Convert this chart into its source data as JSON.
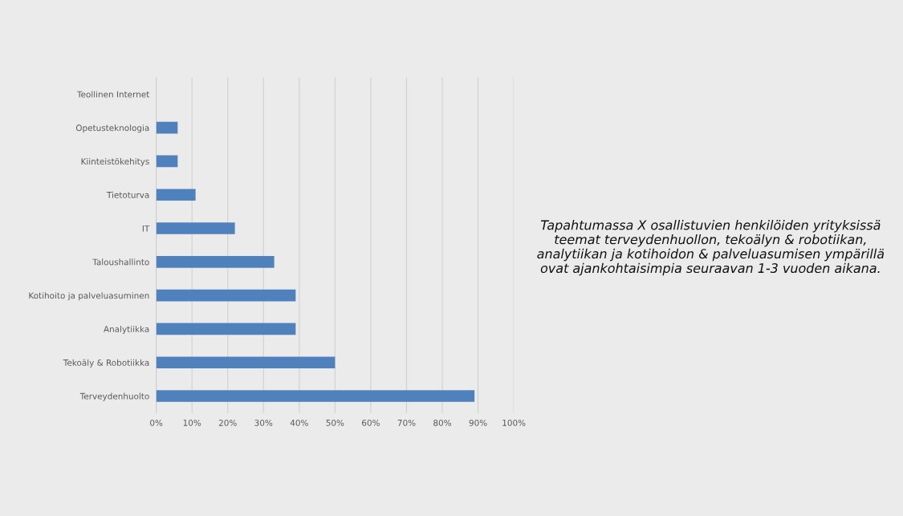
{
  "chart_data": {
    "type": "bar",
    "orientation": "horizontal",
    "categories": [
      "Teollinen Internet",
      "Opetusteknologia",
      "Kiinteistökehitys",
      "Tietoturva",
      "IT",
      "Taloushallinto",
      "Kotihoito ja palveluasuminen",
      "Analytiikka",
      "Tekoäly & Robotiikka",
      "Terveydenhuolto"
    ],
    "values": [
      0,
      6,
      6,
      11,
      22,
      33,
      39,
      39,
      50,
      89
    ],
    "color": "#4f81bd",
    "xlim": [
      0,
      100
    ],
    "xticks": [
      {
        "value": 0,
        "label": "0%"
      },
      {
        "value": 10,
        "label": "10%"
      },
      {
        "value": 20,
        "label": "20%"
      },
      {
        "value": 30,
        "label": "30%"
      },
      {
        "value": 40,
        "label": "40%"
      },
      {
        "value": 50,
        "label": "50%"
      },
      {
        "value": 60,
        "label": "60%"
      },
      {
        "value": 70,
        "label": "70%"
      },
      {
        "value": 80,
        "label": "80%"
      },
      {
        "value": 90,
        "label": "90%"
      },
      {
        "value": 100,
        "label": "100%"
      }
    ],
    "grid": "x",
    "annotations": [
      "Tapahtumassa X osallistuvien henkilöiden yrityksissä teemat terveydenhuollon, tekoälyn & robotiikan, analytiikan ja kotihoidon & palveluasumisen ympärillä ovat ajankohtaisimpia seuraavan 1-3 vuoden aikana."
    ]
  }
}
